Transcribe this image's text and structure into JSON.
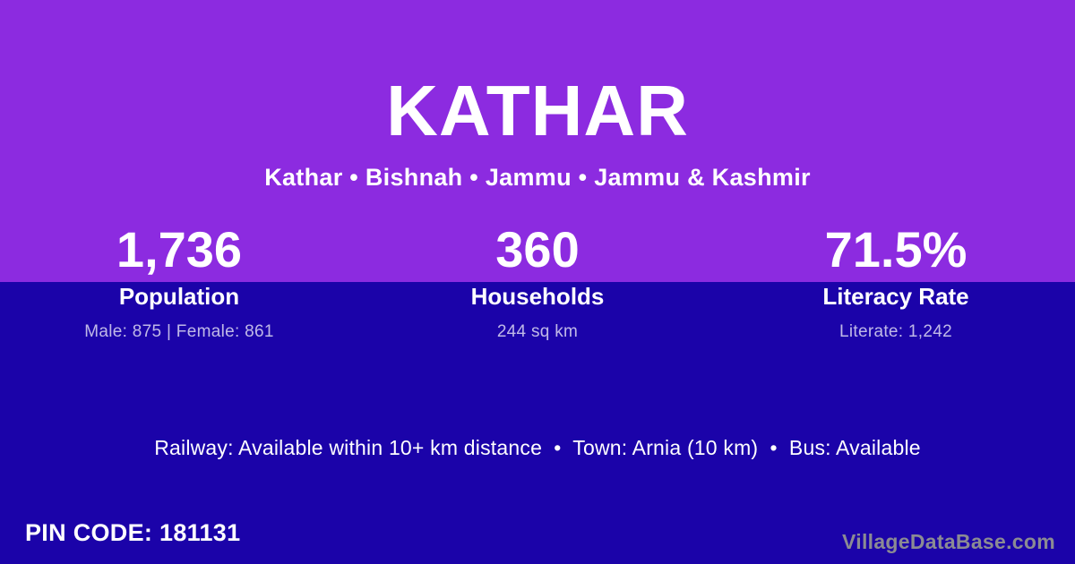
{
  "card": {
    "title": "KATHAR",
    "subtitle": "Kathar • Bishnah • Jammu • Jammu & Kashmir",
    "amenities": "Railway: Available within 10+ km distance  •  Town: Arnia (10 km)  •  Bus: Available",
    "pin_code": "PIN CODE: 181131",
    "watermark": "VillageDataBase.com"
  },
  "stats": [
    {
      "value": "1,736",
      "label": "Population",
      "detail": "Male: 875 | Female: 861"
    },
    {
      "value": "360",
      "label": "Households",
      "detail": "244 sq km"
    },
    {
      "value": "71.5%",
      "label": "Literacy Rate",
      "detail": "Literate: 1,242"
    }
  ],
  "colors": {
    "top_background": "#8C2BE0",
    "bottom_background": "#1B03A9",
    "text": "#FFFFFF",
    "muted_text": "rgba(255,255,255,0.72)",
    "watermark_text": "#8B8B93"
  }
}
